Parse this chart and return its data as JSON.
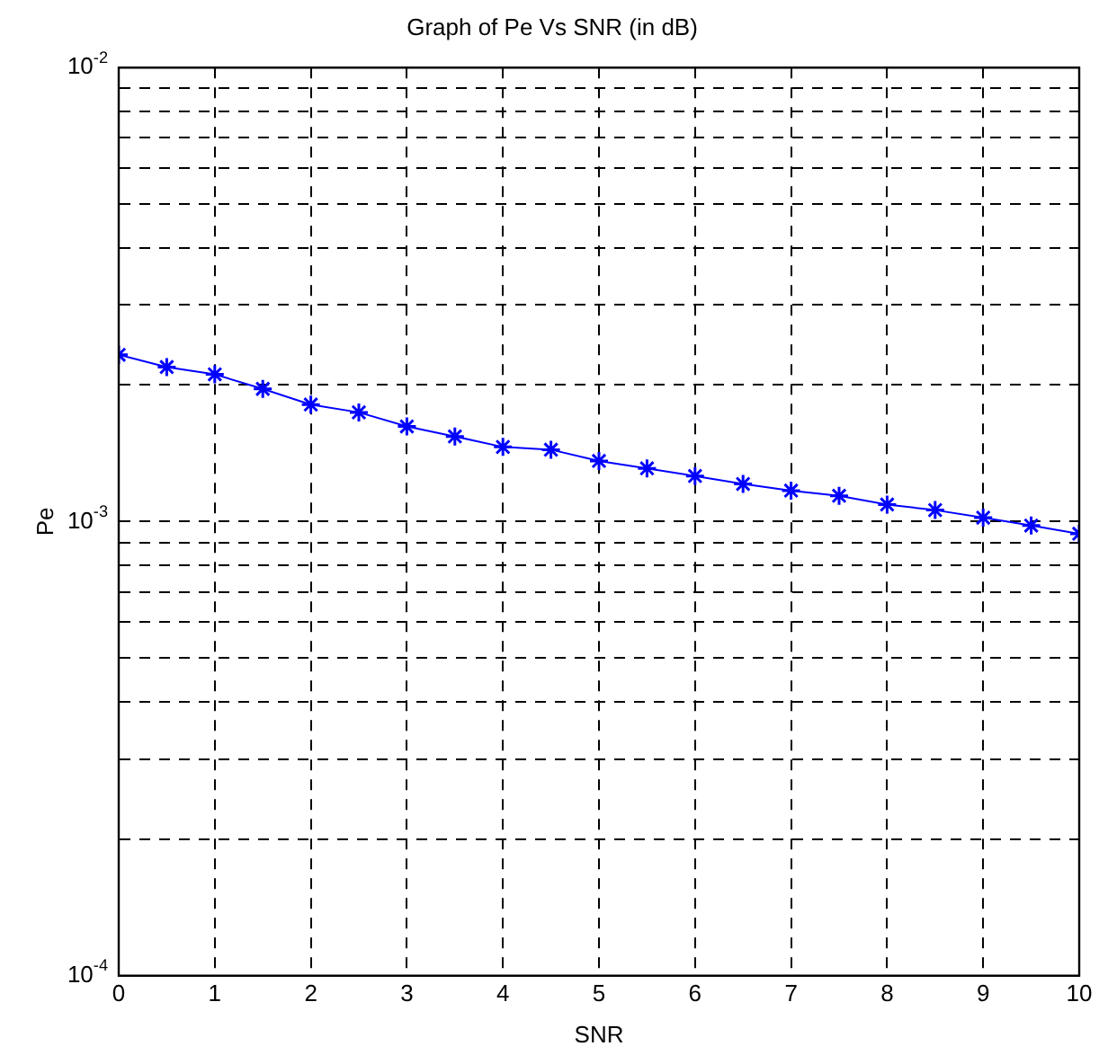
{
  "chart_data": {
    "type": "line",
    "title": "Graph of Pe Vs SNR (in dB)",
    "xlabel": "SNR",
    "ylabel": "Pe",
    "x": [
      0,
      0.5,
      1,
      1.5,
      2,
      2.5,
      3,
      3.5,
      4,
      4.5,
      5,
      5.5,
      6,
      6.5,
      7,
      7.5,
      8,
      8.5,
      9,
      9.5,
      10
    ],
    "series": [
      {
        "color": "#0000ff",
        "values": [
          0.00233,
          0.00219,
          0.00211,
          0.00196,
          0.00181,
          0.00174,
          0.00162,
          0.00154,
          0.00146,
          0.00144,
          0.00136,
          0.00131,
          0.00126,
          0.00121,
          0.00117,
          0.00114,
          0.00109,
          0.00106,
          0.00102,
          0.00098,
          0.00094
        ]
      }
    ],
    "log": "y",
    "xlim": [
      0,
      10
    ],
    "xticks": [
      0,
      1,
      2,
      3,
      4,
      5,
      6,
      7,
      8,
      9,
      10
    ],
    "ylim": [
      0.0001,
      0.01
    ],
    "yticks": [
      {
        "value": 0.0001,
        "label": "10$^{-4}$"
      },
      {
        "value": 0.0002,
        "label": null
      },
      {
        "value": 0.0003,
        "label": null
      },
      {
        "value": 0.0004,
        "label": null
      },
      {
        "value": 0.0005,
        "label": null
      },
      {
        "value": 0.0006,
        "label": null
      },
      {
        "value": 0.0007,
        "label": null
      },
      {
        "value": 0.0008,
        "label": null
      },
      {
        "value": 0.0009,
        "label": null
      },
      {
        "value": 0.001,
        "label": "10$^{-3}$"
      },
      {
        "value": 0.002,
        "label": null
      },
      {
        "value": 0.003,
        "label": null
      },
      {
        "value": 0.004,
        "label": null
      },
      {
        "value": 0.005,
        "label": null
      },
      {
        "value": 0.006,
        "label": null
      },
      {
        "value": 0.007,
        "label": null
      },
      {
        "value": 0.008,
        "label": null
      },
      {
        "value": 0.009,
        "label": null
      },
      {
        "value": 0.01,
        "label": "10$^{-2}$"
      }
    ],
    "grid": true,
    "legend": false,
    "marker": "cross",
    "line_style": "solid"
  }
}
